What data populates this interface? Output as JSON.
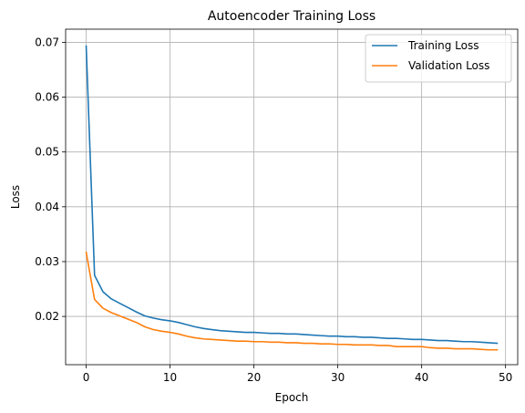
{
  "chart_data": {
    "type": "line",
    "title": "Autoencoder Training Loss",
    "xlabel": "Epoch",
    "ylabel": "Loss",
    "xlim": [
      -2.45,
      51.45
    ],
    "ylim": [
      0.0112,
      0.0724
    ],
    "xticks": [
      0,
      10,
      20,
      30,
      40,
      50
    ],
    "yticks": [
      0.02,
      0.03,
      0.04,
      0.05,
      0.06,
      0.07
    ],
    "xtick_labels": [
      "0",
      "10",
      "20",
      "30",
      "40",
      "50"
    ],
    "ytick_labels": [
      "0.02",
      "0.03",
      "0.04",
      "0.05",
      "0.06",
      "0.07"
    ],
    "grid": true,
    "legend_position": "top-right",
    "x": [
      0,
      1,
      2,
      3,
      4,
      5,
      6,
      7,
      8,
      9,
      10,
      11,
      12,
      13,
      14,
      15,
      16,
      17,
      18,
      19,
      20,
      21,
      22,
      23,
      24,
      25,
      26,
      27,
      28,
      29,
      30,
      31,
      32,
      33,
      34,
      35,
      36,
      37,
      38,
      39,
      40,
      41,
      42,
      43,
      44,
      45,
      46,
      47,
      48,
      49
    ],
    "series": [
      {
        "name": "Training Loss",
        "color": "#1f77b4",
        "values": [
          0.0693,
          0.0275,
          0.0245,
          0.0232,
          0.0224,
          0.0216,
          0.0208,
          0.0201,
          0.0197,
          0.0194,
          0.0192,
          0.0189,
          0.0185,
          0.0181,
          0.0178,
          0.0176,
          0.0174,
          0.0173,
          0.0172,
          0.0171,
          0.0171,
          0.017,
          0.0169,
          0.0169,
          0.0168,
          0.0168,
          0.0167,
          0.0166,
          0.0165,
          0.0164,
          0.0164,
          0.0163,
          0.0163,
          0.0162,
          0.0162,
          0.0161,
          0.016,
          0.016,
          0.0159,
          0.0158,
          0.0158,
          0.0157,
          0.0156,
          0.0156,
          0.0155,
          0.0154,
          0.0154,
          0.0153,
          0.0152,
          0.0151
        ]
      },
      {
        "name": "Validation Loss",
        "color": "#ff7f0e",
        "values": [
          0.0317,
          0.0231,
          0.0215,
          0.0207,
          0.0201,
          0.0195,
          0.0189,
          0.0181,
          0.0176,
          0.0173,
          0.0171,
          0.0168,
          0.0164,
          0.0161,
          0.0159,
          0.0158,
          0.0157,
          0.0156,
          0.0155,
          0.0155,
          0.0154,
          0.0154,
          0.0153,
          0.0153,
          0.0152,
          0.0152,
          0.0151,
          0.0151,
          0.015,
          0.015,
          0.0149,
          0.0149,
          0.0148,
          0.0148,
          0.0148,
          0.0147,
          0.0147,
          0.0145,
          0.0145,
          0.0145,
          0.0145,
          0.0143,
          0.0142,
          0.0142,
          0.0141,
          0.0141,
          0.0141,
          0.014,
          0.0139,
          0.0139
        ]
      }
    ]
  }
}
